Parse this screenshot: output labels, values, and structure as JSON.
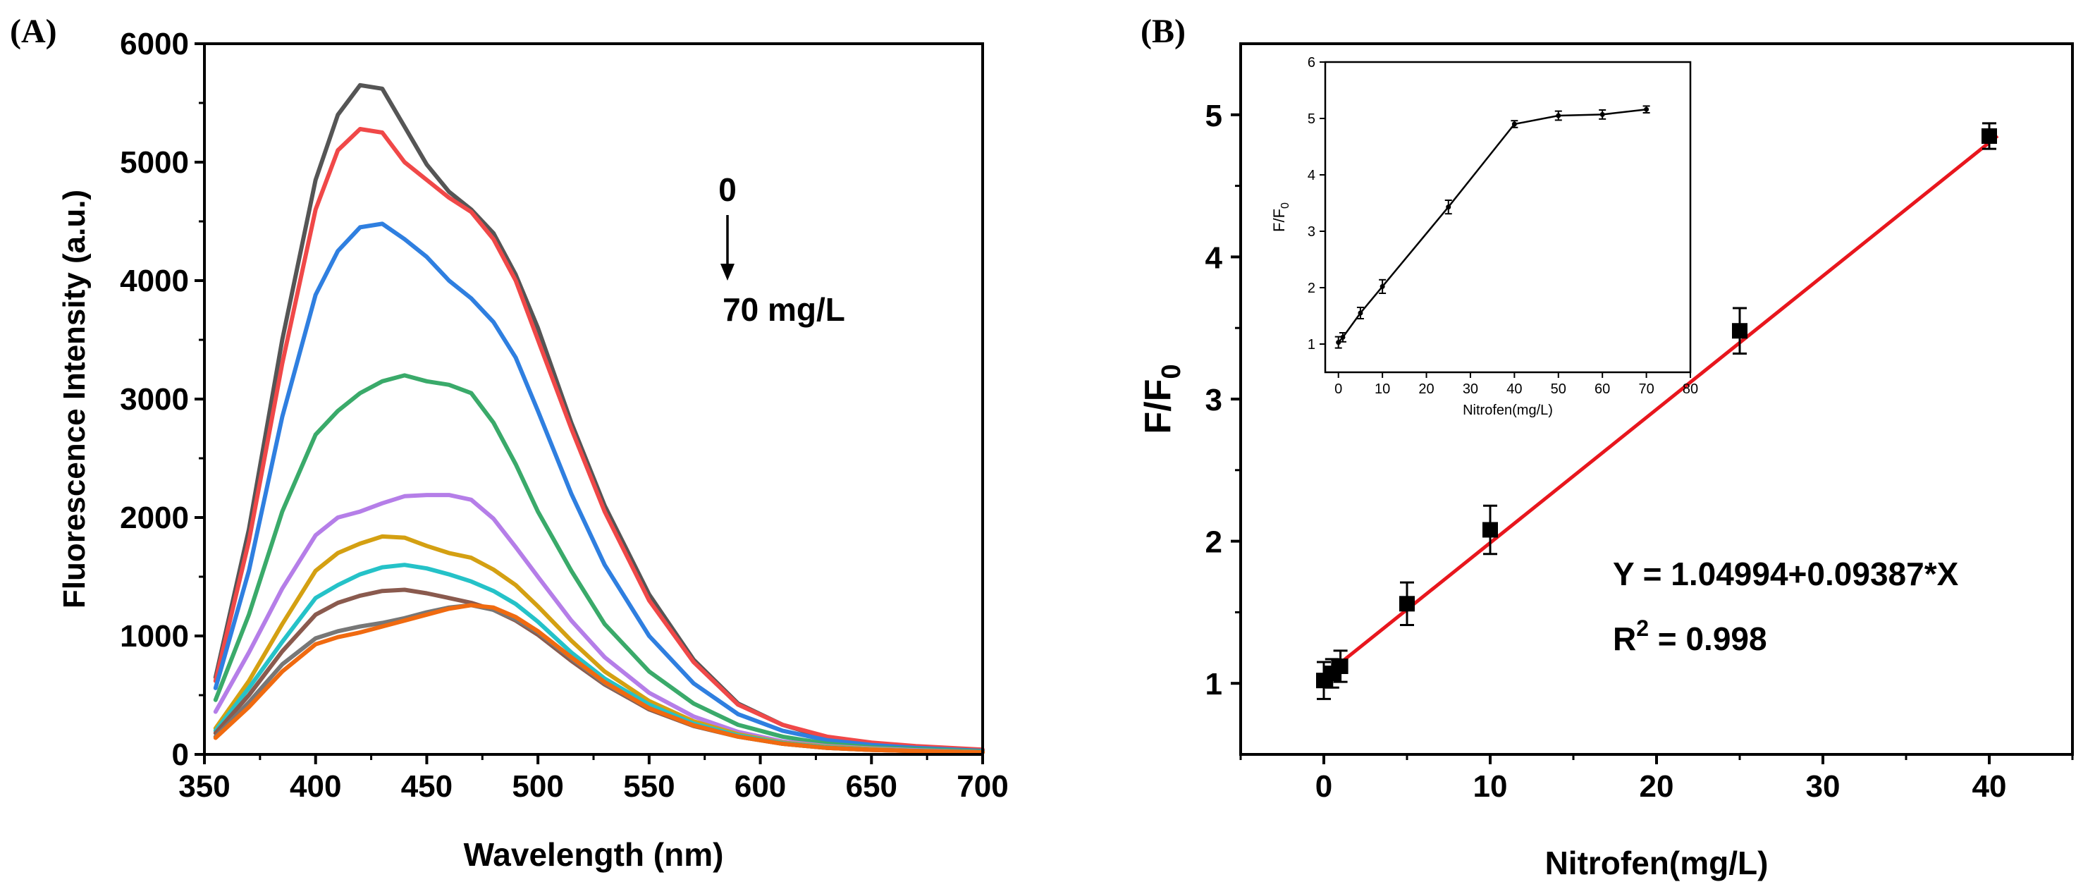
{
  "panels": {
    "a_label": "(A)",
    "b_label": "(B)"
  },
  "chart_data": [
    {
      "type": "line",
      "title": "",
      "xlabel": "Wavelength (nm)",
      "ylabel": "Fluorescence Intensity (a.u.)",
      "xlim": [
        350,
        700
      ],
      "ylim": [
        0,
        6000
      ],
      "xticks": [
        350,
        400,
        450,
        500,
        550,
        600,
        650,
        700
      ],
      "yticks": [
        0,
        1000,
        2000,
        3000,
        4000,
        5000,
        6000
      ],
      "annotation": {
        "top": "0",
        "bottom": "70 mg/L"
      },
      "x": [
        355,
        370,
        385,
        400,
        410,
        420,
        430,
        440,
        450,
        460,
        470,
        480,
        490,
        500,
        515,
        530,
        550,
        570,
        590,
        610,
        630,
        650,
        670,
        700
      ],
      "series": [
        {
          "name": "curve-0",
          "color": "#555555",
          "values": [
            650,
            1900,
            3500,
            4850,
            5400,
            5650,
            5620,
            5300,
            4980,
            4750,
            4600,
            4400,
            4050,
            3600,
            2800,
            2100,
            1350,
            800,
            430,
            250,
            140,
            90,
            60,
            30
          ]
        },
        {
          "name": "curve-1",
          "color": "#f04848",
          "values": [
            620,
            1800,
            3300,
            4600,
            5100,
            5280,
            5250,
            5000,
            4850,
            4700,
            4580,
            4350,
            4000,
            3500,
            2750,
            2050,
            1300,
            780,
            420,
            250,
            150,
            100,
            70,
            40
          ]
        },
        {
          "name": "curve-2",
          "color": "#2f7fe0",
          "values": [
            560,
            1550,
            2850,
            3880,
            4250,
            4450,
            4480,
            4350,
            4200,
            4000,
            3850,
            3650,
            3350,
            2900,
            2200,
            1600,
            1000,
            600,
            340,
            200,
            120,
            80,
            55,
            30
          ]
        },
        {
          "name": "curve-3",
          "color": "#3aaa6a",
          "values": [
            460,
            1180,
            2050,
            2700,
            2900,
            3050,
            3150,
            3200,
            3150,
            3120,
            3050,
            2800,
            2450,
            2050,
            1550,
            1100,
            700,
            430,
            250,
            150,
            90,
            60,
            45,
            25
          ]
        },
        {
          "name": "curve-4",
          "color": "#b57ee8",
          "values": [
            360,
            860,
            1400,
            1850,
            2000,
            2050,
            2120,
            2180,
            2190,
            2190,
            2150,
            1990,
            1750,
            1500,
            1130,
            820,
            520,
            320,
            190,
            110,
            70,
            50,
            35,
            20
          ]
        },
        {
          "name": "curve-5",
          "color": "#d4a012",
          "values": [
            220,
            620,
            1100,
            1550,
            1700,
            1780,
            1840,
            1830,
            1760,
            1700,
            1660,
            1560,
            1430,
            1250,
            960,
            700,
            450,
            280,
            170,
            100,
            65,
            45,
            30,
            20
          ]
        },
        {
          "name": "curve-6",
          "color": "#25c2c8",
          "values": [
            200,
            560,
            950,
            1320,
            1430,
            1520,
            1580,
            1600,
            1570,
            1520,
            1460,
            1380,
            1270,
            1120,
            860,
            640,
            420,
            260,
            160,
            95,
            60,
            40,
            30,
            20
          ]
        },
        {
          "name": "curve-7",
          "color": "#8a5a4e",
          "values": [
            180,
            500,
            870,
            1180,
            1280,
            1340,
            1380,
            1390,
            1360,
            1320,
            1280,
            1220,
            1130,
            1010,
            790,
            590,
            380,
            240,
            150,
            90,
            55,
            38,
            28,
            18
          ]
        },
        {
          "name": "curve-8",
          "color": "#777777",
          "values": [
            150,
            440,
            760,
            980,
            1040,
            1080,
            1110,
            1150,
            1200,
            1240,
            1260,
            1220,
            1140,
            1030,
            810,
            600,
            390,
            245,
            150,
            90,
            55,
            38,
            28,
            18
          ]
        },
        {
          "name": "curve-9",
          "color": "#f06a10",
          "values": [
            140,
            400,
            700,
            930,
            990,
            1030,
            1080,
            1130,
            1180,
            1230,
            1260,
            1240,
            1160,
            1040,
            820,
            610,
            390,
            245,
            150,
            90,
            55,
            38,
            28,
            18
          ]
        }
      ]
    },
    {
      "type": "scatter",
      "title": "",
      "xlabel": "Nitrofen(mg/L)",
      "ylabel_main": "F/F",
      "ylabel_sub": "0",
      "xlim": [
        -5,
        45
      ],
      "ylim": [
        0.5,
        5.5
      ],
      "xticks": [
        0,
        10,
        20,
        30,
        40
      ],
      "yticks": [
        1,
        2,
        3,
        4,
        5
      ],
      "points": {
        "x": [
          0,
          0.5,
          1,
          5,
          10,
          25,
          40
        ],
        "y": [
          1.02,
          1.07,
          1.12,
          1.56,
          2.08,
          3.48,
          4.85
        ],
        "err": [
          0.13,
          0.1,
          0.11,
          0.15,
          0.17,
          0.16,
          0.09
        ]
      },
      "fit": {
        "intercept": 1.04994,
        "slope": 0.09387,
        "color": "#e8161d"
      },
      "equation": "Y = 1.04994+0.09387*X",
      "r2_prefix": "R",
      "r2_sup": "2",
      "r2_value": " = 0.998",
      "inset": {
        "type": "line",
        "xlabel": "Nitrofen(mg/L)",
        "ylabel_main": "F/F",
        "ylabel_sub": "0",
        "xlim": [
          -3,
          80
        ],
        "ylim": [
          0.5,
          6
        ],
        "xticks": [
          0,
          10,
          20,
          30,
          40,
          50,
          60,
          70,
          80
        ],
        "yticks": [
          1,
          2,
          3,
          4,
          5,
          6
        ],
        "x": [
          0,
          1,
          5,
          10,
          25,
          40,
          50,
          60,
          70
        ],
        "y": [
          1.03,
          1.12,
          1.55,
          2.02,
          3.43,
          4.9,
          5.05,
          5.07,
          5.16
        ],
        "err": [
          0.1,
          0.08,
          0.1,
          0.12,
          0.12,
          0.06,
          0.08,
          0.08,
          0.06
        ]
      }
    }
  ]
}
